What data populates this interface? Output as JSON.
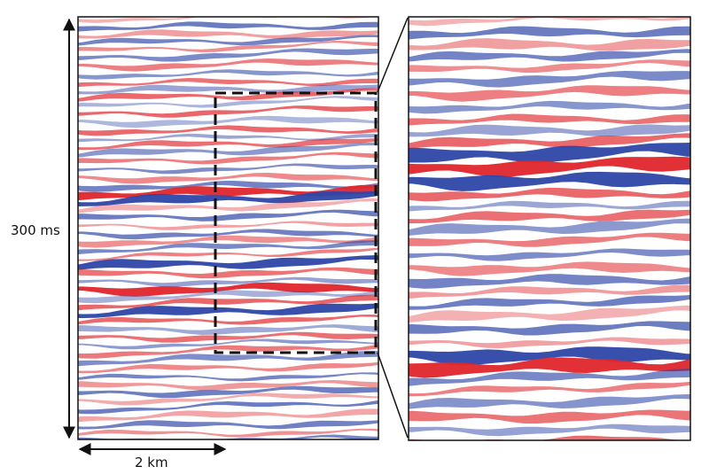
{
  "scale_bars": {
    "vertical_label": "300 ms",
    "horizontal_label": "2 km"
  },
  "colors": {
    "positive_amplitude": "#e0262b",
    "negative_amplitude": "#2e46a8",
    "background": "#ffffff",
    "frame": "#111111"
  }
}
